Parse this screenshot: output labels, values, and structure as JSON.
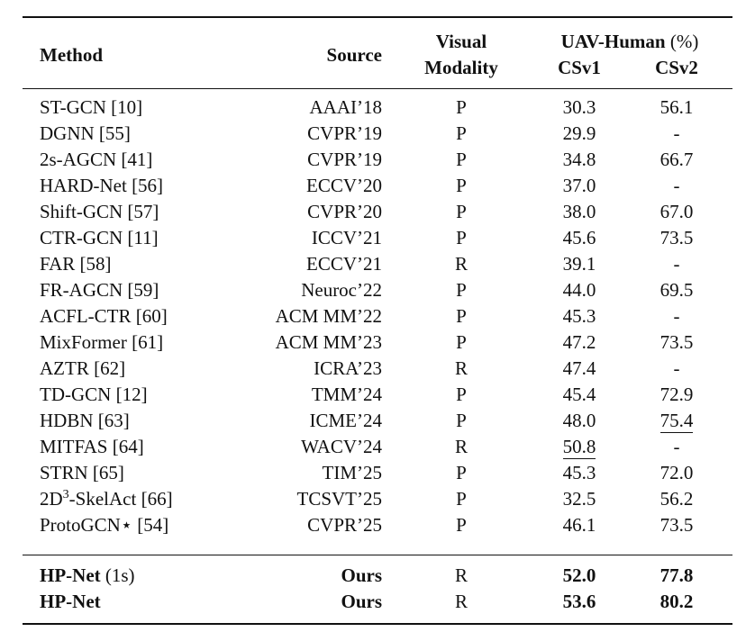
{
  "headers": {
    "method": "Method",
    "source": "Source",
    "visual_line1": "Visual",
    "visual_line2": "Modality",
    "uav_label": "UAV-Human",
    "uav_unit": "(%)",
    "csv1": "CSv1",
    "csv2": "CSv2"
  },
  "rows": [
    {
      "method": "ST-GCN [10]",
      "source": "AAAI’18",
      "visual": "P",
      "csv1": "30.3",
      "csv2": "56.1"
    },
    {
      "method": "DGNN [55]",
      "source": "CVPR’19",
      "visual": "P",
      "csv1": "29.9",
      "csv2": "-"
    },
    {
      "method": "2s-AGCN [41]",
      "source": "CVPR’19",
      "visual": "P",
      "csv1": "34.8",
      "csv2": "66.7"
    },
    {
      "method": "HARD-Net [56]",
      "source": "ECCV’20",
      "visual": "P",
      "csv1": "37.0",
      "csv2": "-"
    },
    {
      "method": "Shift-GCN [57]",
      "source": "CVPR’20",
      "visual": "P",
      "csv1": "38.0",
      "csv2": "67.0"
    },
    {
      "method": "CTR-GCN [11]",
      "source": "ICCV’21",
      "visual": "P",
      "csv1": "45.6",
      "csv2": "73.5"
    },
    {
      "method": "FAR [58]",
      "source": "ECCV’21",
      "visual": "R",
      "csv1": "39.1",
      "csv2": "-"
    },
    {
      "method": "FR-AGCN [59]",
      "source": "Neuroc’22",
      "visual": "P",
      "csv1": "44.0",
      "csv2": "69.5"
    },
    {
      "method": "ACFL-CTR [60]",
      "source": "ACM MM’22",
      "visual": "P",
      "csv1": "45.3",
      "csv2": "-"
    },
    {
      "method": "MixFormer [61]",
      "source": "ACM MM’23",
      "visual": "P",
      "csv1": "47.2",
      "csv2": "73.5"
    },
    {
      "method": "AZTR [62]",
      "source": "ICRA’23",
      "visual": "R",
      "csv1": "47.4",
      "csv2": "-"
    },
    {
      "method": "TD-GCN [12]",
      "source": "TMM’24",
      "visual": "P",
      "csv1": "45.4",
      "csv2": "72.9"
    },
    {
      "method": "HDBN [63]",
      "source": "ICME’24",
      "visual": "P",
      "csv1": "48.0",
      "csv2": "75.4"
    },
    {
      "method": "MITFAS [64]",
      "source": "WACV’24",
      "visual": "R",
      "csv1": "50.8",
      "csv2": "-"
    },
    {
      "method": "STRN [65]",
      "source": "TIM’25",
      "visual": "P",
      "csv1": "45.3",
      "csv2": "72.0"
    },
    {
      "method_prefix": "2D",
      "method_sup": "3",
      "method_suffix": "-SkelAct [66]",
      "source": "TCSVT’25",
      "visual": "P",
      "csv1": "32.5",
      "csv2": "56.2"
    },
    {
      "method": "ProtoGCN⋆ [54]",
      "source": "CVPR’25",
      "visual": "P",
      "csv1": "46.1",
      "csv2": "73.5"
    }
  ],
  "ours": [
    {
      "method_bold": "HP-Net",
      "method_note": " (1s)",
      "source": "Ours",
      "visual": "R",
      "csv1": "52.0",
      "csv2": "77.8"
    },
    {
      "method_bold": "HP-Net",
      "method_note": "",
      "source": "Ours",
      "visual": "R",
      "csv1": "53.6",
      "csv2": "80.2"
    }
  ]
}
